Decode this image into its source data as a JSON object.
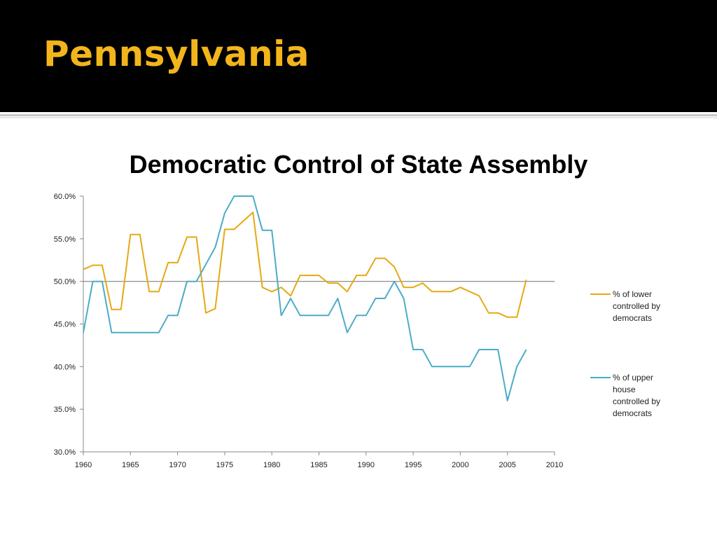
{
  "slide": {
    "title": "Pennsylvania",
    "title_color": "#f3b51c",
    "background_header": "#000000"
  },
  "chart_data": {
    "type": "line",
    "title": "Democratic Control of State Assembly",
    "xlabel": "",
    "ylabel": "",
    "xlim": [
      1960,
      2010
    ],
    "ylim": [
      30,
      60
    ],
    "x_ticks": [
      "1960",
      "1965",
      "1970",
      "1975",
      "1980",
      "1985",
      "1990",
      "1995",
      "2000",
      "2005",
      "2010"
    ],
    "y_ticks": [
      "30.0%",
      "35.0%",
      "40.0%",
      "45.0%",
      "50.0%",
      "55.0%",
      "60.0%"
    ],
    "reference_line": 50,
    "grid": false,
    "legend_position": "right",
    "series": [
      {
        "name": "% of lower controlled by democrats",
        "color": "#e5a912",
        "x": [
          1960,
          1961,
          1962,
          1963,
          1964,
          1965,
          1966,
          1967,
          1968,
          1969,
          1970,
          1971,
          1972,
          1973,
          1974,
          1975,
          1976,
          1977,
          1978,
          1979,
          1980,
          1981,
          1982,
          1983,
          1984,
          1985,
          1986,
          1987,
          1988,
          1989,
          1990,
          1991,
          1992,
          1993,
          1994,
          1995,
          1996,
          1997,
          1998,
          1999,
          2000,
          2001,
          2002,
          2003,
          2004,
          2005,
          2006,
          2007
        ],
        "values": [
          51.4,
          51.9,
          51.9,
          46.7,
          46.7,
          55.5,
          55.5,
          48.8,
          48.8,
          52.2,
          52.2,
          55.2,
          55.2,
          46.3,
          46.8,
          56.1,
          56.1,
          57.1,
          58.1,
          49.3,
          48.8,
          49.3,
          48.3,
          50.7,
          50.7,
          50.7,
          49.8,
          49.8,
          48.8,
          50.7,
          50.7,
          52.7,
          52.7,
          51.7,
          49.3,
          49.3,
          49.8,
          48.8,
          48.8,
          48.8,
          49.3,
          48.8,
          48.3,
          46.3,
          46.3,
          45.8,
          45.8,
          50.2
        ]
      },
      {
        "name": "% of upper house controlled by democrats",
        "color": "#4bacc6",
        "x": [
          1960,
          1961,
          1962,
          1963,
          1964,
          1965,
          1966,
          1967,
          1968,
          1969,
          1970,
          1971,
          1972,
          1973,
          1974,
          1975,
          1976,
          1977,
          1978,
          1979,
          1980,
          1981,
          1982,
          1983,
          1984,
          1985,
          1986,
          1987,
          1988,
          1989,
          1990,
          1991,
          1992,
          1993,
          1994,
          1995,
          1996,
          1997,
          1998,
          1999,
          2000,
          2001,
          2002,
          2003,
          2004,
          2005,
          2006,
          2007
        ],
        "values": [
          44,
          50,
          50,
          44,
          44,
          44,
          44,
          44,
          44,
          46,
          46,
          50,
          50,
          52,
          54,
          58,
          60,
          60,
          60,
          56,
          56,
          46,
          48,
          46,
          46,
          46,
          46,
          48,
          44,
          46,
          46,
          48,
          48,
          50,
          48,
          42,
          42,
          40,
          40,
          40,
          40,
          40,
          42,
          42,
          42,
          36,
          40,
          42
        ]
      }
    ],
    "legend_lines": [
      [
        "% of lower",
        "controlled by",
        "democrats"
      ],
      [
        "% of upper",
        "house",
        "controlled by",
        "democrats"
      ]
    ]
  }
}
